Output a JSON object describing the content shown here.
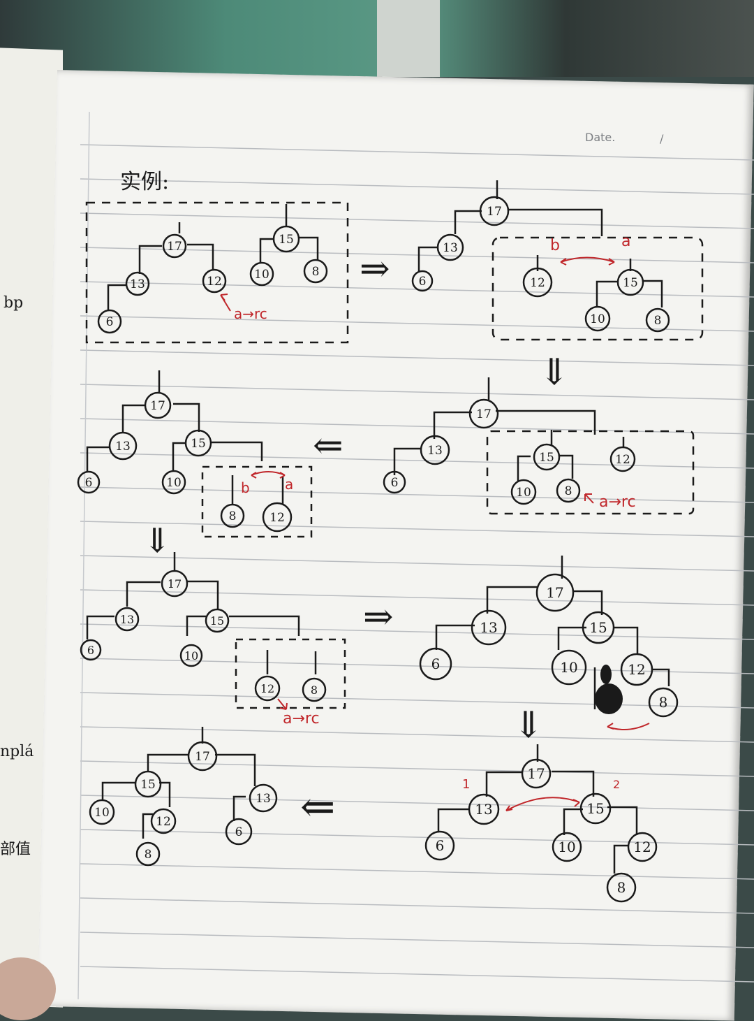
{
  "page": {
    "date_label": "Date.",
    "date_slash": "/",
    "heading": "实例:"
  },
  "margin_notes": [
    "bp",
    "nplá",
    "部值"
  ],
  "diagrams": {
    "d1": {
      "nodes": [
        "17",
        "13",
        "12",
        "6",
        "15",
        "10",
        "8"
      ],
      "note": "a→rc"
    },
    "d2": {
      "nodes": [
        "17",
        "13",
        "6",
        "12",
        "15",
        "10",
        "8"
      ],
      "label_b": "b",
      "label_a": "a"
    },
    "d3": {
      "nodes": [
        "17",
        "13",
        "6",
        "15",
        "12",
        "10",
        "8"
      ],
      "note": "a→rc"
    },
    "d4": {
      "nodes": [
        "17",
        "13",
        "6",
        "15",
        "10",
        "8",
        "12"
      ],
      "label_b": "b",
      "label_a": "a"
    },
    "d5": {
      "nodes": [
        "17",
        "13",
        "6",
        "15",
        "10",
        "12",
        "8"
      ],
      "note": "a→rc"
    },
    "d6": {
      "nodes": [
        "17",
        "13",
        "6",
        "15",
        "10",
        "12",
        "8"
      ]
    },
    "d7": {
      "nodes": [
        "17",
        "13",
        "6",
        "15",
        "10",
        "12",
        "8"
      ],
      "mark_1": "1",
      "mark_2": "2"
    },
    "d8": {
      "nodes": [
        "17",
        "15",
        "10",
        "12",
        "8",
        "13",
        "6"
      ]
    }
  },
  "arrows": {
    "right": "⇒",
    "down": "⇓",
    "left": "⇐"
  },
  "colors": {
    "ink": "#1a1a1a",
    "red_ink": "#c0262a",
    "paper": "#f4f4f1",
    "rule": "#b9bcc0"
  }
}
